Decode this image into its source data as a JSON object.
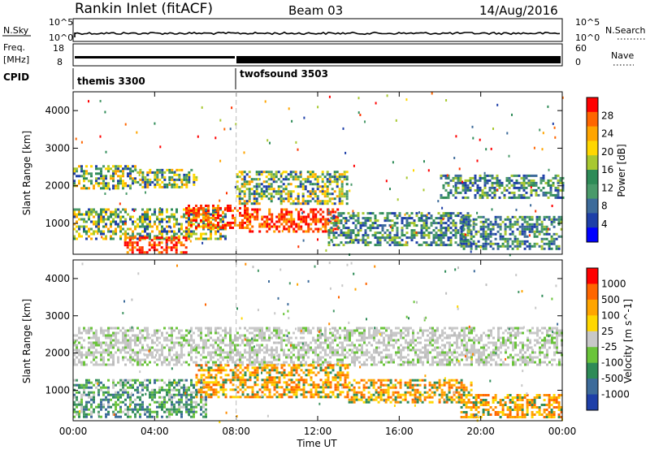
{
  "header": {
    "title": "Rankin Inlet (fitACF)",
    "beam": "Beam 03",
    "date": "14/Aug/2016"
  },
  "nsky_panel": {
    "left_label": "N.Sky",
    "left_ticks": [
      "10^5",
      "10^0"
    ],
    "right_label": "N.Search",
    "right_ticks": [
      "10^5",
      "10^0"
    ]
  },
  "freq_panel": {
    "left_label_1": "Freq.",
    "left_label_2": "[MHz]",
    "left_ticks": [
      "18",
      "8"
    ],
    "right_label": "Nave",
    "right_ticks": [
      "60",
      "0"
    ]
  },
  "cpid_panel": {
    "label": "CPID",
    "modes": [
      {
        "name": "themis 3300",
        "start_hour": 0
      },
      {
        "name": "twofsound 3503",
        "start_hour": 8
      }
    ]
  },
  "x_axis": {
    "label": "Time UT",
    "ticks": [
      "00:00",
      "04:00",
      "08:00",
      "12:00",
      "16:00",
      "20:00",
      "00:00"
    ]
  },
  "chart_data": [
    {
      "type": "heatmap",
      "quantity": "Power",
      "colorbar_label": "Power [dB]",
      "colorbar_ticks": [
        "28",
        "24",
        "20",
        "16",
        "12",
        "8",
        "4"
      ],
      "colorbar_colors": [
        "#0000ff",
        "#1e3fa8",
        "#3d6b9a",
        "#4a9a6a",
        "#2e8b57",
        "#a8c830",
        "#ffd700",
        "#ffa500",
        "#ff6600",
        "#ff0000"
      ],
      "ylabel": "Slant Range [km]",
      "ylim": [
        180,
        4500
      ],
      "yticks": [
        "1000",
        "2000",
        "3000",
        "4000"
      ],
      "xlim_hours": [
        0,
        24
      ],
      "regions": [
        {
          "t0": 0.0,
          "t1": 3.0,
          "r0": 1950,
          "r1": 2550,
          "level": "medium"
        },
        {
          "t0": 3.0,
          "t1": 6.0,
          "r0": 1950,
          "r1": 2450,
          "level": "medium"
        },
        {
          "t0": 0.0,
          "t1": 7.5,
          "r0": 600,
          "r1": 1400,
          "level": "medium"
        },
        {
          "t0": 2.5,
          "t1": 5.5,
          "r0": 200,
          "r1": 650,
          "level": "high"
        },
        {
          "t0": 5.5,
          "t1": 8.5,
          "r0": 900,
          "r1": 1500,
          "level": "high"
        },
        {
          "t0": 8.0,
          "t1": 13.5,
          "r0": 1500,
          "r1": 2400,
          "level": "medium"
        },
        {
          "t0": 8.5,
          "t1": 13.0,
          "r0": 800,
          "r1": 1400,
          "level": "high"
        },
        {
          "t0": 12.5,
          "t1": 19.5,
          "r0": 400,
          "r1": 1300,
          "level": "low"
        },
        {
          "t0": 18.0,
          "t1": 24.0,
          "r0": 1700,
          "r1": 2300,
          "level": "low"
        },
        {
          "t0": 19.0,
          "t1": 24.0,
          "r0": 300,
          "r1": 1200,
          "level": "low"
        }
      ]
    },
    {
      "type": "heatmap",
      "quantity": "Velocity",
      "colorbar_label": "Velocity [m s^-1]",
      "colorbar_ticks": [
        "1000",
        "500",
        "100",
        "25",
        "-25",
        "-100",
        "-500",
        "-1000"
      ],
      "colorbar_colors": [
        "#1e3fa8",
        "#3d6b9a",
        "#2e8b57",
        "#6ac43a",
        "#c8c8c8",
        "#ffd700",
        "#ffa500",
        "#ff6600",
        "#ff0000"
      ],
      "ylabel": "Slant Range [km]",
      "ylim": [
        180,
        4500
      ],
      "yticks": [
        "1000",
        "2000",
        "3000",
        "4000"
      ],
      "xlim_hours": [
        0,
        24
      ],
      "regions": [
        {
          "t0": 0.0,
          "t1": 24.0,
          "r0": 1700,
          "r1": 2700,
          "level": "gray"
        },
        {
          "t0": 0.0,
          "t1": 6.5,
          "r0": 300,
          "r1": 1300,
          "level": "green"
        },
        {
          "t0": 6.0,
          "t1": 13.5,
          "r0": 800,
          "r1": 1700,
          "level": "orange"
        },
        {
          "t0": 13.5,
          "t1": 19.5,
          "r0": 700,
          "r1": 1300,
          "level": "orange"
        },
        {
          "t0": 19.0,
          "t1": 24.0,
          "r0": 300,
          "r1": 900,
          "level": "orange"
        }
      ]
    }
  ]
}
